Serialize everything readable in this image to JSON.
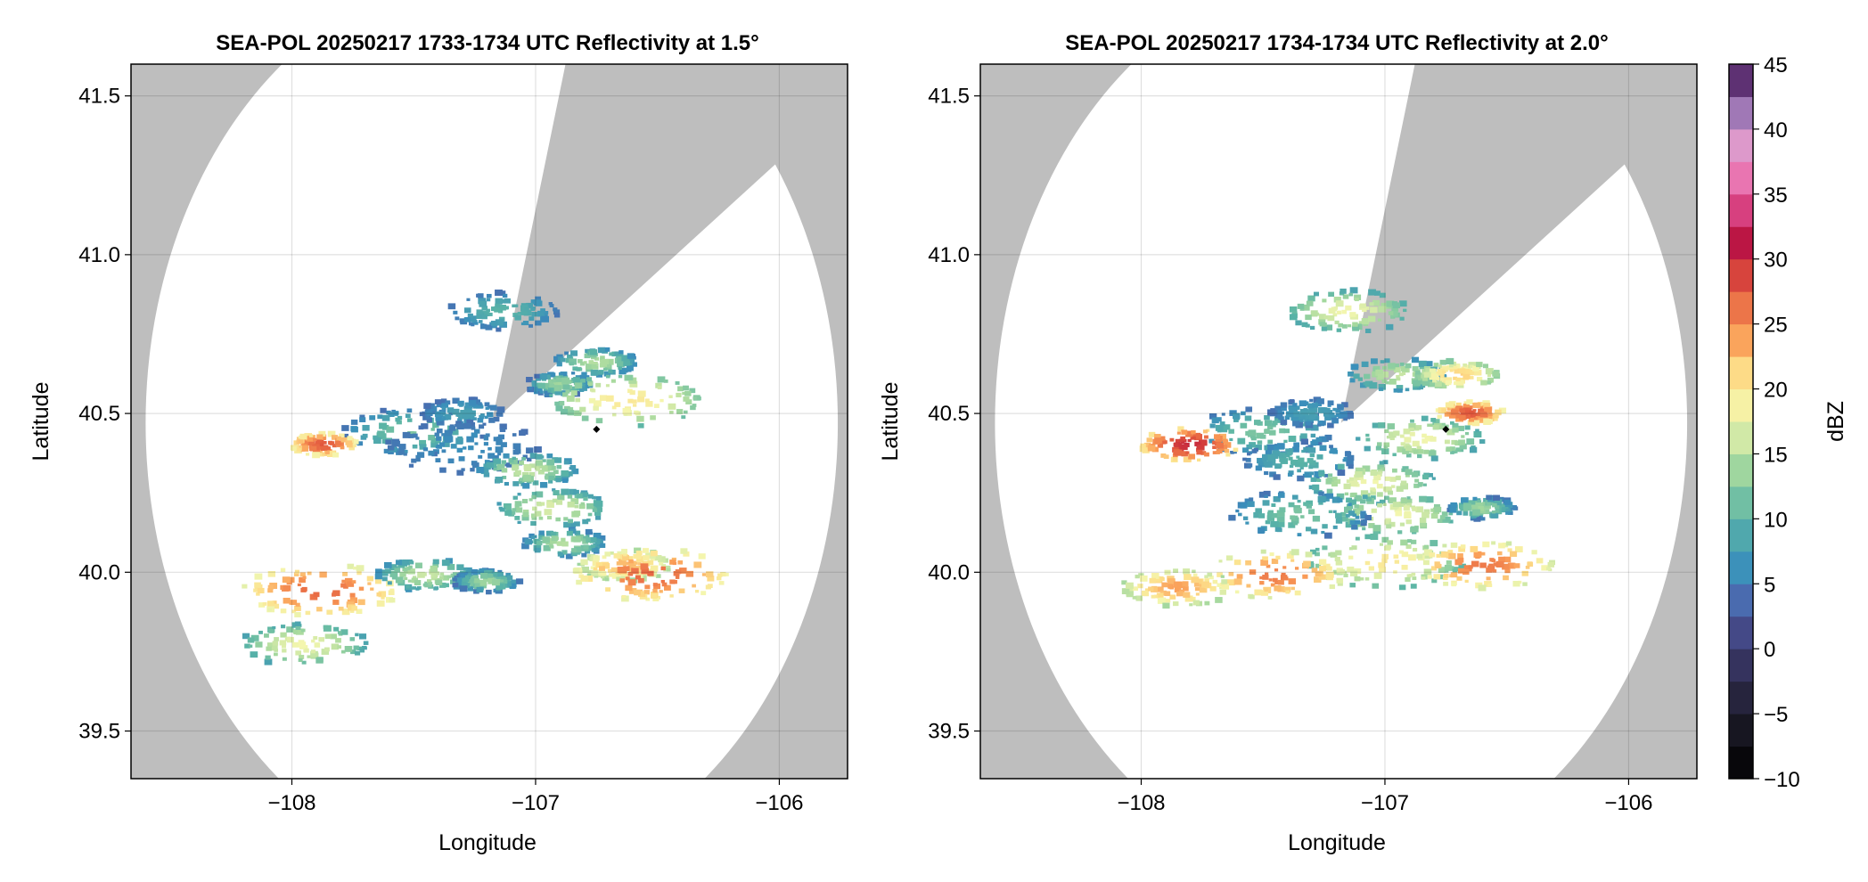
{
  "chart_data": [
    {
      "type": "heatmap",
      "title": "SEA-POL 20250217 1733-1734 UTC Reflectivity at 1.5°",
      "xlabel": "Longitude",
      "ylabel": "Latitude",
      "xlim": [
        -108.66,
        -105.72
      ],
      "ylim": [
        39.35,
        41.6
      ],
      "xticks": [
        -108,
        -107,
        -106
      ],
      "xtick_labels": [
        "−108",
        "−107",
        "−106"
      ],
      "yticks": [
        39.5,
        40.0,
        40.5,
        41.0,
        41.5
      ],
      "ytick_labels": [
        "39.5",
        "40.0",
        "40.5",
        "41.0",
        "41.5"
      ],
      "grid": true,
      "background_color": "#bebebe",
      "radar_site": {
        "lon": -107.18,
        "lat": 40.47
      },
      "coverage_radius_deg": 1.42,
      "beam_block_azimuths": [
        [
          15.0,
          55.0
        ]
      ],
      "point_marker": {
        "lon": -106.75,
        "lat": 40.45
      },
      "echo_cells": [
        {
          "lon": -107.5,
          "lat": 40.44,
          "peak_dbz": 12
        },
        {
          "lon": -107.3,
          "lat": 40.5,
          "peak_dbz": 8
        },
        {
          "lon": -107.3,
          "lat": 40.39,
          "peak_dbz": 6
        },
        {
          "lon": -107.87,
          "lat": 40.4,
          "peak_dbz": 28
        },
        {
          "lon": -107.13,
          "lat": 40.82,
          "peak_dbz": 10
        },
        {
          "lon": -106.9,
          "lat": 40.59,
          "peak_dbz": 14
        },
        {
          "lon": -106.75,
          "lat": 40.66,
          "peak_dbz": 15
        },
        {
          "lon": -106.62,
          "lat": 40.54,
          "peak_dbz": 20
        },
        {
          "lon": -107.03,
          "lat": 40.32,
          "peak_dbz": 16
        },
        {
          "lon": -106.93,
          "lat": 40.2,
          "peak_dbz": 17
        },
        {
          "lon": -106.88,
          "lat": 40.09,
          "peak_dbz": 15
        },
        {
          "lon": -106.63,
          "lat": 40.02,
          "peak_dbz": 23
        },
        {
          "lon": -106.52,
          "lat": 39.99,
          "peak_dbz": 27
        },
        {
          "lon": -107.88,
          "lat": 39.94,
          "peak_dbz": 27
        },
        {
          "lon": -107.45,
          "lat": 39.99,
          "peak_dbz": 16
        },
        {
          "lon": -107.95,
          "lat": 39.77,
          "peak_dbz": 18
        },
        {
          "lon": -107.2,
          "lat": 39.97,
          "peak_dbz": 14
        }
      ]
    },
    {
      "type": "heatmap",
      "title": "SEA-POL 20250217 1734-1734 UTC Reflectivity at 2.0°",
      "xlabel": "Longitude",
      "ylabel": "Latitude",
      "xlim": [
        -108.66,
        -105.72
      ],
      "ylim": [
        39.35,
        41.6
      ],
      "xticks": [
        -108,
        -107,
        -106
      ],
      "xtick_labels": [
        "−108",
        "−107",
        "−106"
      ],
      "yticks": [
        39.5,
        40.0,
        40.5,
        41.0,
        41.5
      ],
      "ytick_labels": [
        "39.5",
        "40.0",
        "40.5",
        "41.0",
        "41.5"
      ],
      "grid": true,
      "background_color": "#bebebe",
      "radar_site": {
        "lon": -107.18,
        "lat": 40.47
      },
      "coverage_radius_deg": 1.42,
      "beam_block_azimuths": [
        [
          15.0,
          55.0
        ]
      ],
      "point_marker": {
        "lon": -106.75,
        "lat": 40.45
      },
      "echo_cells": [
        {
          "lon": -107.5,
          "lat": 40.44,
          "peak_dbz": 12
        },
        {
          "lon": -107.3,
          "lat": 40.5,
          "peak_dbz": 8
        },
        {
          "lon": -107.35,
          "lat": 40.35,
          "peak_dbz": 10
        },
        {
          "lon": -107.8,
          "lat": 40.4,
          "peak_dbz": 30
        },
        {
          "lon": -107.15,
          "lat": 40.82,
          "peak_dbz": 18
        },
        {
          "lon": -106.95,
          "lat": 40.62,
          "peak_dbz": 16
        },
        {
          "lon": -106.7,
          "lat": 40.62,
          "peak_dbz": 22
        },
        {
          "lon": -106.65,
          "lat": 40.5,
          "peak_dbz": 28
        },
        {
          "lon": -106.85,
          "lat": 40.42,
          "peak_dbz": 18
        },
        {
          "lon": -107.05,
          "lat": 40.28,
          "peak_dbz": 18
        },
        {
          "lon": -106.95,
          "lat": 40.18,
          "peak_dbz": 18
        },
        {
          "lon": -106.6,
          "lat": 40.2,
          "peak_dbz": 14
        },
        {
          "lon": -107.0,
          "lat": 40.03,
          "peak_dbz": 20
        },
        {
          "lon": -106.6,
          "lat": 40.02,
          "peak_dbz": 26
        },
        {
          "lon": -107.45,
          "lat": 39.99,
          "peak_dbz": 26
        },
        {
          "lon": -107.85,
          "lat": 39.95,
          "peak_dbz": 24
        },
        {
          "lon": -107.35,
          "lat": 40.18,
          "peak_dbz": 12
        }
      ]
    }
  ],
  "colorbar": {
    "label": "dBZ",
    "min": -10,
    "max": 45,
    "ticks": [
      -10,
      -5,
      0,
      5,
      10,
      15,
      20,
      25,
      30,
      35,
      40,
      45
    ],
    "tick_labels": [
      "−10",
      "−5",
      "0",
      "5",
      "10",
      "15",
      "20",
      "25",
      "30",
      "35",
      "40",
      "45"
    ],
    "stops": [
      {
        "dbz": -10,
        "color": "#000000"
      },
      {
        "dbz": -5,
        "color": "#1f1d2c"
      },
      {
        "dbz": 0,
        "color": "#3c3a6e"
      },
      {
        "dbz": 3,
        "color": "#4f5fab"
      },
      {
        "dbz": 6,
        "color": "#3a8fbb"
      },
      {
        "dbz": 10,
        "color": "#5ab4a6"
      },
      {
        "dbz": 14,
        "color": "#a4d89e"
      },
      {
        "dbz": 18,
        "color": "#f4f6ae"
      },
      {
        "dbz": 21,
        "color": "#fde08b"
      },
      {
        "dbz": 24,
        "color": "#fa9e58"
      },
      {
        "dbz": 28,
        "color": "#e1553d"
      },
      {
        "dbz": 31,
        "color": "#b8123e"
      },
      {
        "dbz": 35,
        "color": "#e5559c"
      },
      {
        "dbz": 38,
        "color": "#efa2cf"
      },
      {
        "dbz": 41,
        "color": "#a77fbd"
      },
      {
        "dbz": 45,
        "color": "#3d0d52"
      }
    ]
  }
}
